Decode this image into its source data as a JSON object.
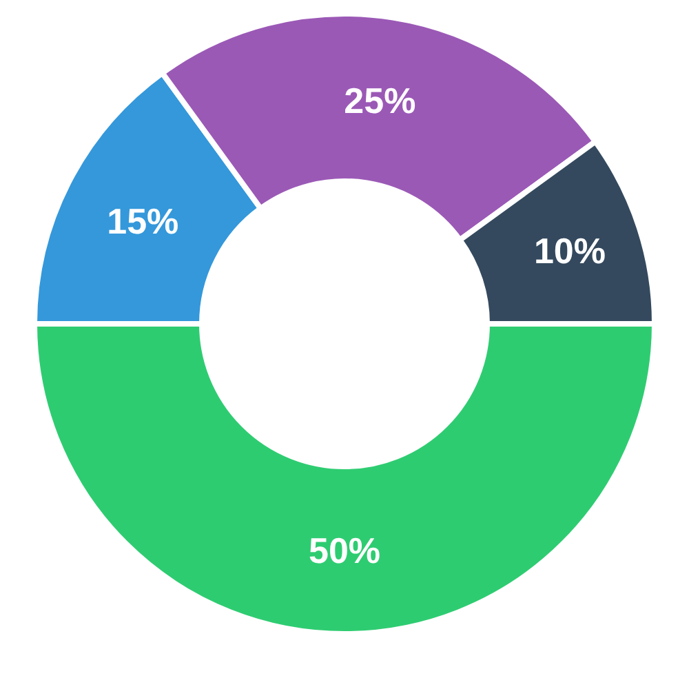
{
  "chart_data": {
    "type": "donut",
    "categories": [
      null,
      null,
      null,
      null
    ],
    "values": [
      15,
      25,
      10,
      50
    ],
    "value_labels": [
      "15%",
      "25%",
      "10%",
      "50%"
    ],
    "colors": [
      "#3498db",
      "#9b59b6",
      "#34495e",
      "#2ecc71"
    ],
    "legend": false
  }
}
